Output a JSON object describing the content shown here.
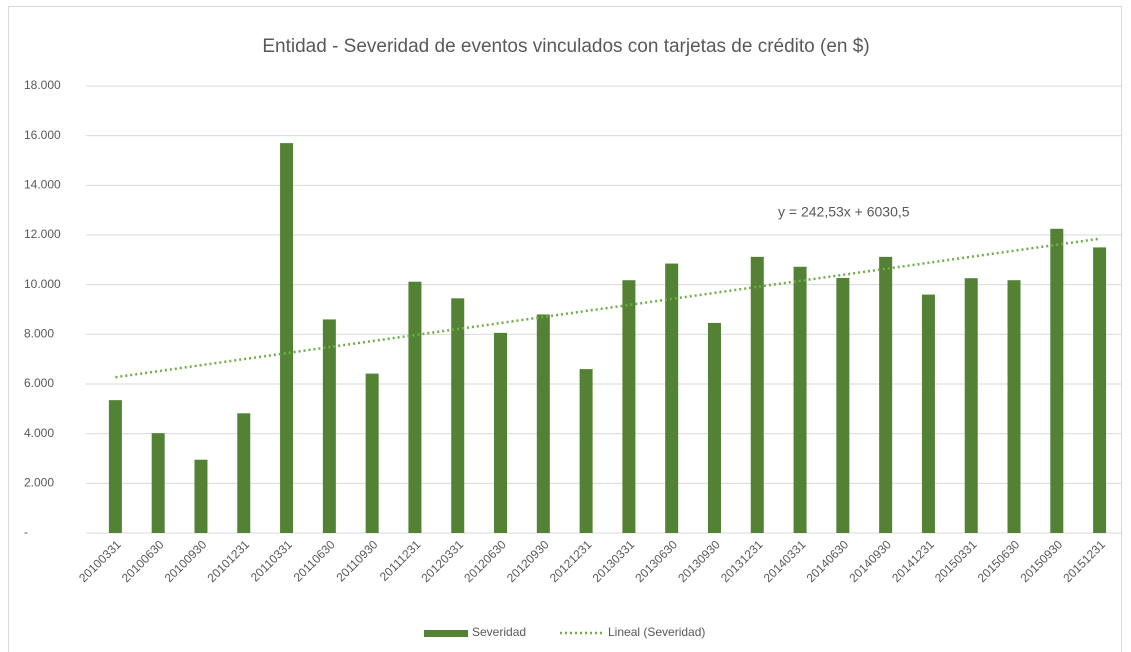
{
  "chart_data": {
    "type": "bar",
    "title": "Entidad - Severidad de eventos vinculados con tarjetas de crédito (en $)",
    "categories": [
      "20100331",
      "20100630",
      "20100930",
      "20101231",
      "20110331",
      "20110630",
      "20110930",
      "20111231",
      "20120331",
      "20120630",
      "20120930",
      "20121231",
      "20130331",
      "20130630",
      "20130930",
      "20131231",
      "20140331",
      "20140630",
      "20140930",
      "20141231",
      "20150331",
      "20150630",
      "20150930",
      "20151231"
    ],
    "series": [
      {
        "name": "Severidad",
        "color": "#548235",
        "values": [
          5350,
          4020,
          2950,
          4820,
          15700,
          8600,
          6420,
          10120,
          9450,
          8060,
          8800,
          6600,
          10180,
          10850,
          8460,
          11120,
          10720,
          10270,
          11120,
          9600,
          10260,
          10180,
          12250,
          11500
        ]
      }
    ],
    "trendline": {
      "name": "Lineal (Severidad)",
      "color": "#70ad47",
      "slope": 242.53,
      "intercept": 6030.5,
      "label": "y = 242,53x + 6030,5"
    },
    "ylim": [
      0,
      18000
    ],
    "yticks": [
      {
        "value": 0,
        "label": "-"
      },
      {
        "value": 2000,
        "label": "2.000"
      },
      {
        "value": 4000,
        "label": "4.000"
      },
      {
        "value": 6000,
        "label": "6.000"
      },
      {
        "value": 8000,
        "label": "8.000"
      },
      {
        "value": 10000,
        "label": "10.000"
      },
      {
        "value": 12000,
        "label": "12.000"
      },
      {
        "value": 14000,
        "label": "14.000"
      },
      {
        "value": 16000,
        "label": "16.000"
      },
      {
        "value": 18000,
        "label": "18.000"
      }
    ],
    "grid": true,
    "legend": "bottom"
  }
}
